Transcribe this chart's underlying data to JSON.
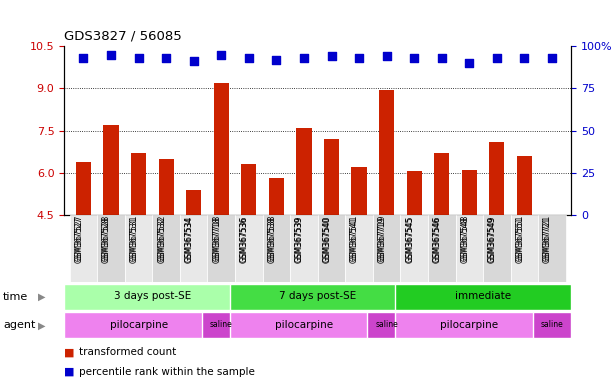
{
  "title": "GDS3827 / 56085",
  "samples": [
    "GSM367527",
    "GSM367528",
    "GSM367531",
    "GSM367532",
    "GSM367534",
    "GSM367718",
    "GSM367536",
    "GSM367538",
    "GSM367539",
    "GSM367540",
    "GSM367541",
    "GSM367719",
    "GSM367545",
    "GSM367546",
    "GSM367548",
    "GSM367549",
    "GSM367551",
    "GSM367721"
  ],
  "red_values": [
    6.4,
    7.7,
    6.7,
    6.5,
    5.4,
    9.2,
    6.3,
    5.8,
    7.6,
    7.2,
    6.2,
    8.95,
    6.05,
    6.7,
    6.1,
    7.1,
    6.6,
    4.5
  ],
  "blue_values": [
    93,
    95,
    93,
    93,
    91,
    95,
    93,
    92,
    93,
    94,
    93,
    94,
    93,
    93,
    90,
    93,
    93,
    93
  ],
  "ylim_left": [
    4.5,
    10.5
  ],
  "ylim_right": [
    0,
    100
  ],
  "yticks_left": [
    4.5,
    6.0,
    7.5,
    9.0,
    10.5
  ],
  "yticks_right": [
    0,
    25,
    50,
    75,
    100
  ],
  "grid_lines": [
    6.0,
    7.5,
    9.0
  ],
  "time_groups": [
    {
      "label": "3 days post-SE",
      "start": 0,
      "end": 6,
      "color": "#AAFFAA"
    },
    {
      "label": "7 days post-SE",
      "start": 6,
      "end": 12,
      "color": "#44DD44"
    },
    {
      "label": "immediate",
      "start": 12,
      "end": 18,
      "color": "#22CC22"
    }
  ],
  "agent_groups": [
    {
      "label": "pilocarpine",
      "start": 0,
      "end": 5,
      "color": "#EE82EE"
    },
    {
      "label": "saline",
      "start": 5,
      "end": 6,
      "color": "#CC44CC"
    },
    {
      "label": "pilocarpine",
      "start": 6,
      "end": 11,
      "color": "#EE82EE"
    },
    {
      "label": "saline",
      "start": 11,
      "end": 12,
      "color": "#CC44CC"
    },
    {
      "label": "pilocarpine",
      "start": 12,
      "end": 17,
      "color": "#EE82EE"
    },
    {
      "label": "saline",
      "start": 17,
      "end": 18,
      "color": "#CC44CC"
    }
  ],
  "bar_color": "#CC2200",
  "dot_color": "#0000CC",
  "tick_label_color_left": "#CC0000",
  "tick_label_color_right": "#0000CC",
  "bar_width": 0.55,
  "dot_size": 30,
  "legend_items": [
    {
      "color": "#CC2200",
      "label": "transformed count"
    },
    {
      "color": "#0000CC",
      "label": "percentile rank within the sample"
    }
  ]
}
